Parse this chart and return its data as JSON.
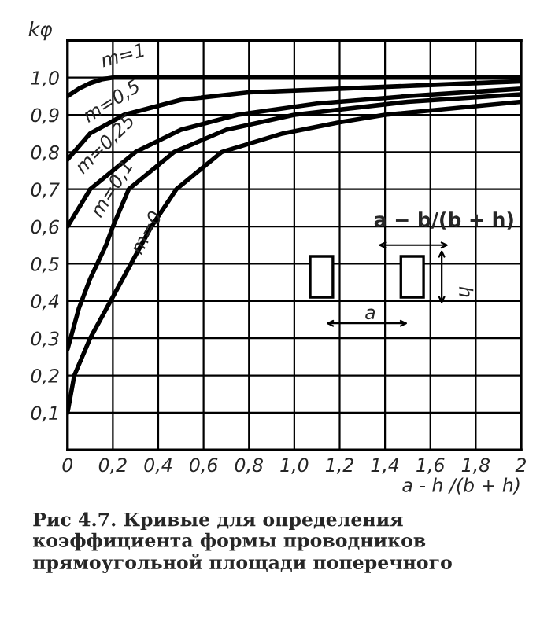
{
  "chart_data": {
    "type": "line",
    "ylabel": "kφ",
    "xlabel": "a - h /(b + h)",
    "xlim": [
      0,
      2
    ],
    "ylim": [
      0,
      1.1
    ],
    "xticks": [
      {
        "value": 0,
        "label": "0"
      },
      {
        "value": 0.2,
        "label": "0,2"
      },
      {
        "value": 0.4,
        "label": "0,4"
      },
      {
        "value": 0.6,
        "label": "0,6"
      },
      {
        "value": 0.8,
        "label": "0,8"
      },
      {
        "value": 1.0,
        "label": "1,0"
      },
      {
        "value": 1.2,
        "label": "1,2"
      },
      {
        "value": 1.4,
        "label": "1,4"
      },
      {
        "value": 1.6,
        "label": "1,6"
      },
      {
        "value": 1.8,
        "label": "1,8"
      },
      {
        "value": 2,
        "label": "2"
      }
    ],
    "yticks": [
      {
        "value": 0.1,
        "label": "0,1"
      },
      {
        "value": 0.2,
        "label": "0,2"
      },
      {
        "value": 0.3,
        "label": "0,3"
      },
      {
        "value": 0.4,
        "label": "0,4"
      },
      {
        "value": 0.5,
        "label": "0,5"
      },
      {
        "value": 0.6,
        "label": "0,6"
      },
      {
        "value": 0.7,
        "label": "0,7"
      },
      {
        "value": 0.8,
        "label": "0,8"
      },
      {
        "value": 0.9,
        "label": "0,9"
      },
      {
        "value": 1.0,
        "label": "1,0"
      }
    ],
    "grid": true,
    "marker": "none",
    "line_style": "solid",
    "series": [
      {
        "color": "#000000",
        "x": [
          0,
          0.05,
          0.1,
          0.15,
          0.2,
          0.4,
          1.0,
          2.0
        ],
        "values": [
          0.95,
          0.97,
          0.985,
          0.995,
          1.0,
          1.0,
          1.0,
          1.0
        ]
      },
      {
        "color": "#000000",
        "x": [
          0,
          0.1,
          0.25,
          0.5,
          0.8,
          1.2,
          1.6,
          2.0
        ],
        "values": [
          0.78,
          0.85,
          0.9,
          0.94,
          0.96,
          0.97,
          0.98,
          0.99
        ]
      },
      {
        "color": "#000000",
        "x": [
          0,
          0.1,
          0.3,
          0.5,
          0.75,
          1.1,
          1.5,
          2.0
        ],
        "values": [
          0.6,
          0.7,
          0.8,
          0.86,
          0.9,
          0.93,
          0.95,
          0.97
        ]
      },
      {
        "color": "#000000",
        "x": [
          0,
          0.05,
          0.1,
          0.17,
          0.2,
          0.27,
          0.47,
          0.7,
          1.0,
          1.5,
          2.0
        ],
        "values": [
          0.27,
          0.38,
          0.46,
          0.55,
          0.6,
          0.7,
          0.8,
          0.86,
          0.9,
          0.935,
          0.955
        ]
      },
      {
        "color": "#000000",
        "x": [
          0,
          0.03,
          0.1,
          0.19,
          0.28,
          0.37,
          0.48,
          0.68,
          0.95,
          1.2,
          1.4,
          2.0
        ],
        "values": [
          0.1,
          0.2,
          0.3,
          0.4,
          0.5,
          0.6,
          0.7,
          0.8,
          0.85,
          0.88,
          0.9,
          0.935
        ]
      }
    ],
    "annotations": [
      "m=1",
      "m=0,5",
      "m=0,25",
      "m=0,1",
      "m=0",
      "a − b/(b + h)",
      "a",
      "h",
      "Рис 4.7. Кривые для определения коэффициента формы проводников прямоугольной площади поперечного"
    ]
  }
}
